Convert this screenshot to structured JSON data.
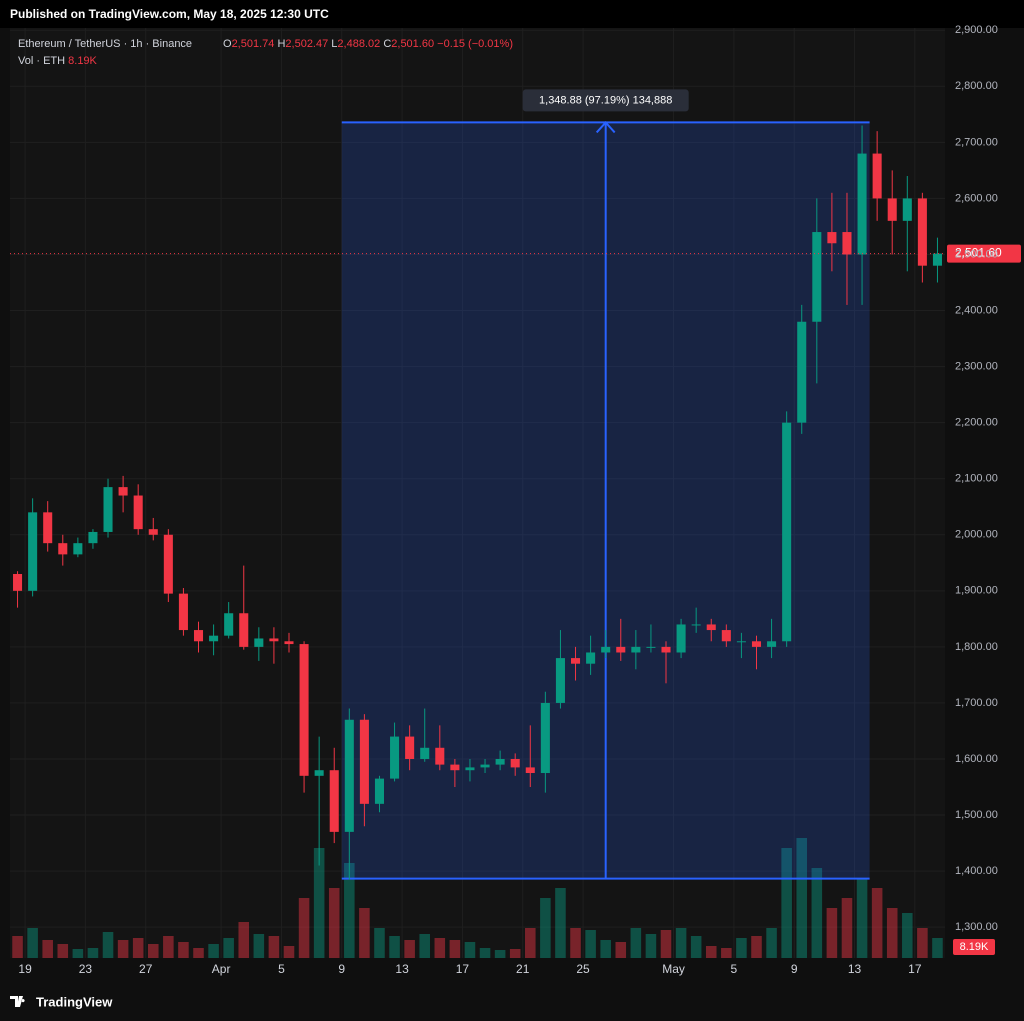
{
  "header": {
    "published": "Published on TradingView.com, May 18, 2025 12:30 UTC",
    "symbol": "Ethereum / TetherUS · 1h · Binance",
    "o_label": "O",
    "o": "2,501.74",
    "h_label": "H",
    "h": "2,502.47",
    "l_label": "L",
    "l": "2,488.02",
    "c_label": "C",
    "c": "2,501.60",
    "change": "−0.15 (−0.01%)",
    "vol_label": "Vol · ETH",
    "vol": "8.19K"
  },
  "footer": {
    "brand": "TradingView"
  },
  "chart_data": {
    "type": "candlestick",
    "x": [
      "2025-03-18",
      "2025-03-19",
      "2025-03-20",
      "2025-03-21",
      "2025-03-22",
      "2025-03-23",
      "2025-03-24",
      "2025-03-25",
      "2025-03-26",
      "2025-03-27",
      "2025-03-28",
      "2025-03-29",
      "2025-03-30",
      "2025-03-31",
      "2025-04-01",
      "2025-04-02",
      "2025-04-03",
      "2025-04-04",
      "2025-04-05",
      "2025-04-06",
      "2025-04-07",
      "2025-04-08",
      "2025-04-09",
      "2025-04-10",
      "2025-04-11",
      "2025-04-12",
      "2025-04-13",
      "2025-04-14",
      "2025-04-15",
      "2025-04-16",
      "2025-04-17",
      "2025-04-18",
      "2025-04-19",
      "2025-04-20",
      "2025-04-21",
      "2025-04-22",
      "2025-04-23",
      "2025-04-24",
      "2025-04-25",
      "2025-04-26",
      "2025-04-27",
      "2025-04-28",
      "2025-04-29",
      "2025-04-30",
      "2025-05-01",
      "2025-05-02",
      "2025-05-03",
      "2025-05-04",
      "2025-05-05",
      "2025-05-06",
      "2025-05-07",
      "2025-05-08",
      "2025-05-09",
      "2025-05-10",
      "2025-05-11",
      "2025-05-12",
      "2025-05-13",
      "2025-05-14",
      "2025-05-15",
      "2025-05-16",
      "2025-05-17",
      "2025-05-18"
    ],
    "open": [
      1930,
      1900,
      2040,
      1985,
      1965,
      1985,
      2005,
      2085,
      2070,
      2010,
      2000,
      1895,
      1830,
      1810,
      1820,
      1860,
      1800,
      1815,
      1810,
      1805,
      1570,
      1580,
      1470,
      1670,
      1520,
      1565,
      1640,
      1600,
      1620,
      1590,
      1580,
      1585,
      1590,
      1600,
      1585,
      1575,
      1700,
      1780,
      1770,
      1790,
      1800,
      1790,
      1800,
      1800,
      1790,
      1840,
      1840,
      1830,
      1810,
      1810,
      1800,
      1810,
      2200,
      2380,
      2540,
      2540,
      2500,
      2680,
      2600,
      2560,
      2600,
      2480
    ],
    "high": [
      1935,
      2065,
      2060,
      2000,
      1995,
      2010,
      2100,
      2105,
      2090,
      2030,
      2010,
      1905,
      1845,
      1840,
      1880,
      1945,
      1835,
      1835,
      1825,
      1810,
      1640,
      1620,
      1690,
      1680,
      1570,
      1665,
      1660,
      1690,
      1660,
      1600,
      1600,
      1600,
      1615,
      1610,
      1660,
      1720,
      1830,
      1800,
      1820,
      1830,
      1850,
      1830,
      1840,
      1810,
      1850,
      1870,
      1850,
      1840,
      1825,
      1820,
      1850,
      2220,
      2410,
      2600,
      2610,
      2610,
      2730,
      2720,
      2650,
      2640,
      2610,
      2530
    ],
    "low": [
      1870,
      1890,
      1970,
      1945,
      1960,
      1975,
      1995,
      2040,
      2000,
      1990,
      1880,
      1820,
      1790,
      1785,
      1815,
      1795,
      1775,
      1770,
      1790,
      1540,
      1410,
      1450,
      1385,
      1480,
      1505,
      1560,
      1580,
      1595,
      1580,
      1550,
      1560,
      1575,
      1580,
      1570,
      1550,
      1540,
      1690,
      1740,
      1750,
      1780,
      1775,
      1760,
      1790,
      1735,
      1780,
      1825,
      1810,
      1800,
      1780,
      1760,
      1780,
      1800,
      2180,
      2270,
      2470,
      2410,
      2410,
      2560,
      2500,
      2470,
      2450,
      2450
    ],
    "close": [
      1900,
      2040,
      1985,
      1965,
      1985,
      2005,
      2085,
      2070,
      2010,
      2000,
      1895,
      1830,
      1810,
      1820,
      1860,
      1800,
      1815,
      1810,
      1805,
      1570,
      1580,
      1470,
      1670,
      1520,
      1565,
      1640,
      1600,
      1620,
      1590,
      1580,
      1585,
      1590,
      1600,
      1585,
      1575,
      1700,
      1780,
      1770,
      1790,
      1800,
      1790,
      1800,
      1800,
      1790,
      1840,
      1840,
      1830,
      1810,
      1810,
      1800,
      1810,
      2200,
      2380,
      2540,
      2520,
      2500,
      2680,
      2600,
      2560,
      2600,
      2480,
      2501.6
    ],
    "volume": [
      22,
      30,
      18,
      14,
      9,
      10,
      26,
      18,
      20,
      14,
      22,
      16,
      10,
      14,
      20,
      36,
      24,
      22,
      12,
      60,
      110,
      70,
      95,
      50,
      30,
      22,
      18,
      24,
      20,
      18,
      16,
      10,
      8,
      9,
      30,
      60,
      70,
      30,
      28,
      18,
      16,
      30,
      24,
      28,
      30,
      22,
      12,
      10,
      20,
      22,
      30,
      110,
      120,
      90,
      50,
      60,
      80,
      70,
      50,
      45,
      30,
      20
    ],
    "volume_ylim": [
      0,
      200
    ],
    "up_color": "#089981",
    "down_color": "#f23645",
    "xlim": [
      "2025-03-18",
      "2025-05-19"
    ],
    "xticks": [
      {
        "value": "2025-03-19",
        "label": "19"
      },
      {
        "value": "2025-03-23",
        "label": "23"
      },
      {
        "value": "2025-03-27",
        "label": "27"
      },
      {
        "value": "2025-04-01",
        "label": "Apr"
      },
      {
        "value": "2025-04-05",
        "label": "5"
      },
      {
        "value": "2025-04-09",
        "label": "9"
      },
      {
        "value": "2025-04-13",
        "label": "13"
      },
      {
        "value": "2025-04-17",
        "label": "17"
      },
      {
        "value": "2025-04-21",
        "label": "21"
      },
      {
        "value": "2025-04-25",
        "label": "25"
      },
      {
        "value": "2025-05-01",
        "label": "May"
      },
      {
        "value": "2025-05-05",
        "label": "5"
      },
      {
        "value": "2025-05-09",
        "label": "9"
      },
      {
        "value": "2025-05-13",
        "label": "13"
      },
      {
        "value": "2025-05-17",
        "label": "17"
      }
    ],
    "ylim": [
      1245,
      2904
    ],
    "yticks": [
      {
        "value": 1300,
        "label": "1,300.00"
      },
      {
        "value": 1400,
        "label": "1,400.00"
      },
      {
        "value": 1500,
        "label": "1,500.00"
      },
      {
        "value": 1600,
        "label": "1,600.00"
      },
      {
        "value": 1700,
        "label": "1,700.00"
      },
      {
        "value": 1800,
        "label": "1,800.00"
      },
      {
        "value": 1900,
        "label": "1,900.00"
      },
      {
        "value": 2000,
        "label": "2,000.00"
      },
      {
        "value": 2100,
        "label": "2,100.00"
      },
      {
        "value": 2200,
        "label": "2,200.00"
      },
      {
        "value": 2300,
        "label": "2,300.00"
      },
      {
        "value": 2400,
        "label": "2,400.00"
      },
      {
        "value": 2500,
        "label": "2,500.00"
      },
      {
        "value": 2600,
        "label": "2,600.00"
      },
      {
        "value": 2700,
        "label": "2,700.00"
      },
      {
        "value": 2800,
        "label": "2,800.00"
      },
      {
        "value": 2900,
        "label": "2,900.00"
      }
    ],
    "grid": true,
    "last_price": {
      "value": 2501.6,
      "label": "2,501.60"
    },
    "last_volume": "8.19K",
    "measure": {
      "x0": "2025-04-09",
      "x1": "2025-05-14",
      "low": 1386.66,
      "high": 2735.54,
      "label": "1,348.88 (97.19%) 134,888",
      "color": "#2962ff"
    }
  }
}
